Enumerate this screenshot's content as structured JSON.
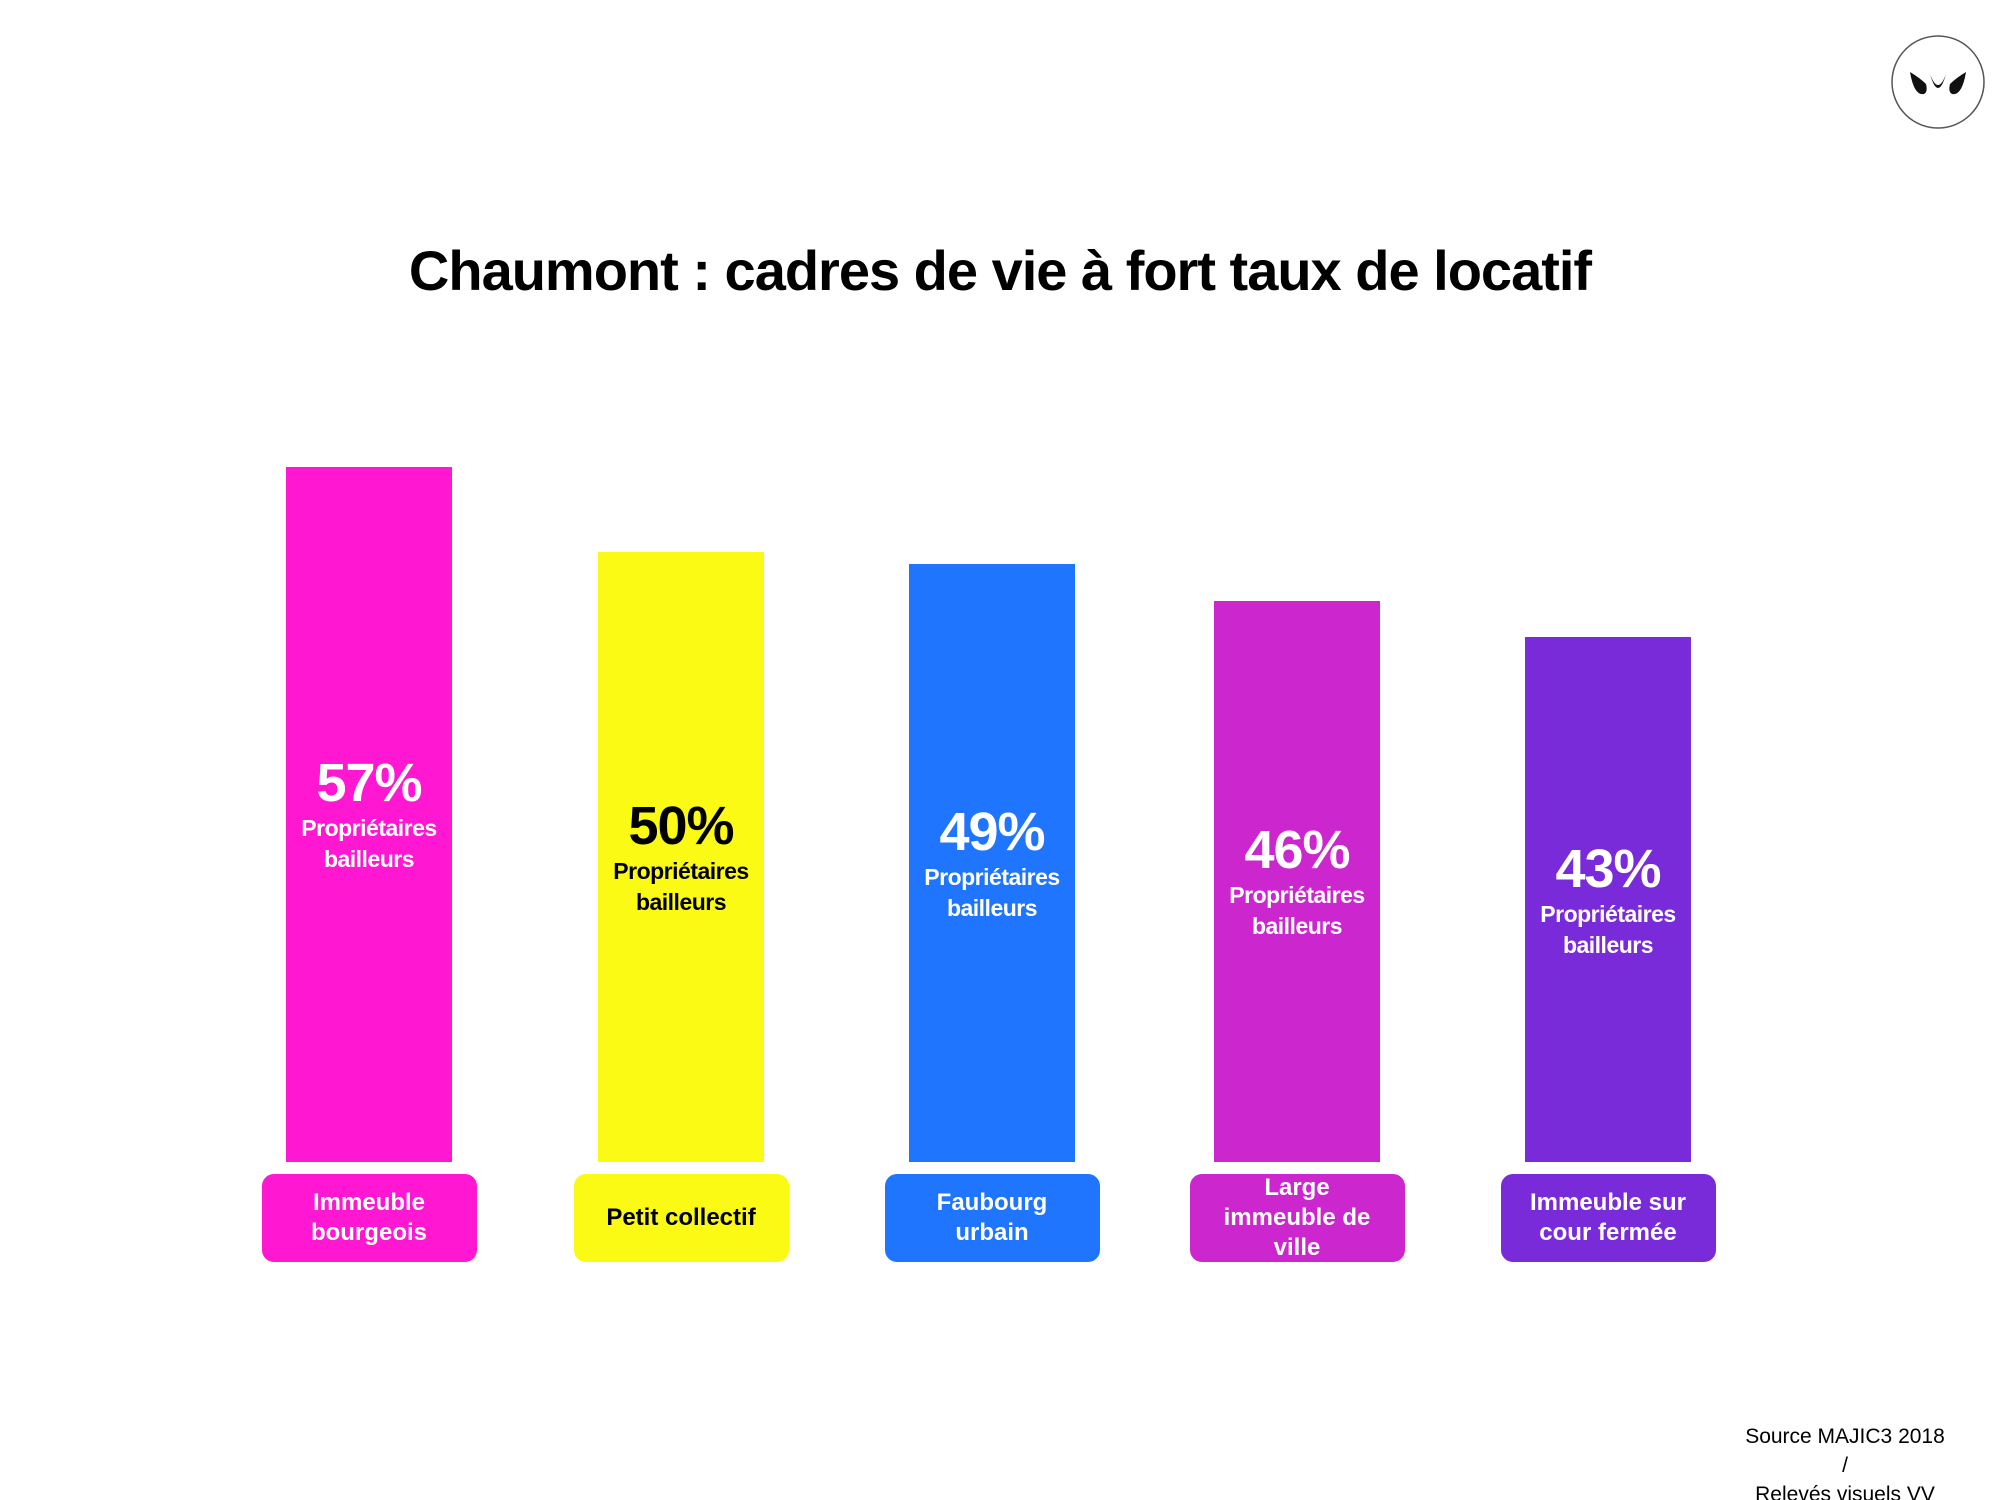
{
  "chart_data": {
    "type": "bar",
    "title": "Chaumont : cadres de vie à fort taux de locatif",
    "categories": [
      "Immeuble bourgeois",
      "Petit collectif",
      "Faubourg urbain",
      "Large immeuble de ville",
      "Immeuble sur cour fermée"
    ],
    "values": [
      57,
      50,
      49,
      46,
      43
    ],
    "value_labels": [
      "57%",
      "50%",
      "49%",
      "46%",
      "43%"
    ],
    "value_caption": "Propriétaires bailleurs",
    "colors": [
      "#ff17d2",
      "#fafa14",
      "#1f75fe",
      "#cc27cf",
      "#7a2bd9"
    ],
    "label_colors": [
      "#ffffff",
      "#000000",
      "#ffffff",
      "#ffffff",
      "#ffffff"
    ],
    "source": [
      "Source MAJIC3 2018",
      "/",
      "Relevés visuels VV"
    ]
  }
}
